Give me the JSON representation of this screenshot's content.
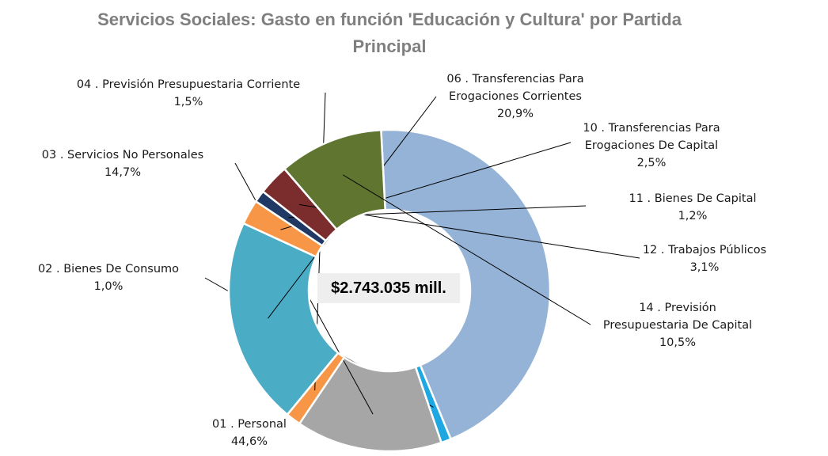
{
  "chart_data": {
    "type": "pie",
    "title_lines": [
      "Servicios Sociales: Gasto en  función 'Educación y Cultura' por Partida",
      "Principal"
    ],
    "center_label": "$2.743.035 mill.",
    "slices": [
      {
        "label_lines": [
          "01 . Personal"
        ],
        "pct_label": "44,6%",
        "value": 44.6,
        "color": "#95B3D7"
      },
      {
        "label_lines": [
          "02 . Bienes De Consumo"
        ],
        "pct_label": "1,0%",
        "value": 1.0,
        "color": "#1EA7E1"
      },
      {
        "label_lines": [
          "03 . Servicios No Personales"
        ],
        "pct_label": "14,7%",
        "value": 14.7,
        "color": "#A6A6A6"
      },
      {
        "label_lines": [
          "04 . Previsión Presupuestaria Corriente"
        ],
        "pct_label": "1,5%",
        "value": 1.5,
        "color": "#F79646"
      },
      {
        "label_lines": [
          "06 . Transferencias Para",
          "Erogaciones Corrientes"
        ],
        "pct_label": "20,9%",
        "value": 20.9,
        "color": "#4BACC6"
      },
      {
        "label_lines": [
          "10 . Transferencias Para",
          "Erogaciones De Capital"
        ],
        "pct_label": "2,5%",
        "value": 2.5,
        "color": "#F79646"
      },
      {
        "label_lines": [
          "11 . Bienes De Capital"
        ],
        "pct_label": "1,2%",
        "value": 1.2,
        "color": "#1F3864"
      },
      {
        "label_lines": [
          "12 . Trabajos Públicos"
        ],
        "pct_label": "3,1%",
        "value": 3.1,
        "color": "#7B2C2C"
      },
      {
        "label_lines": [
          "14 . Previsión",
          "Presupuestaria De Capital"
        ],
        "pct_label": "10,5%",
        "value": 10.5,
        "color": "#5F7530"
      }
    ]
  }
}
